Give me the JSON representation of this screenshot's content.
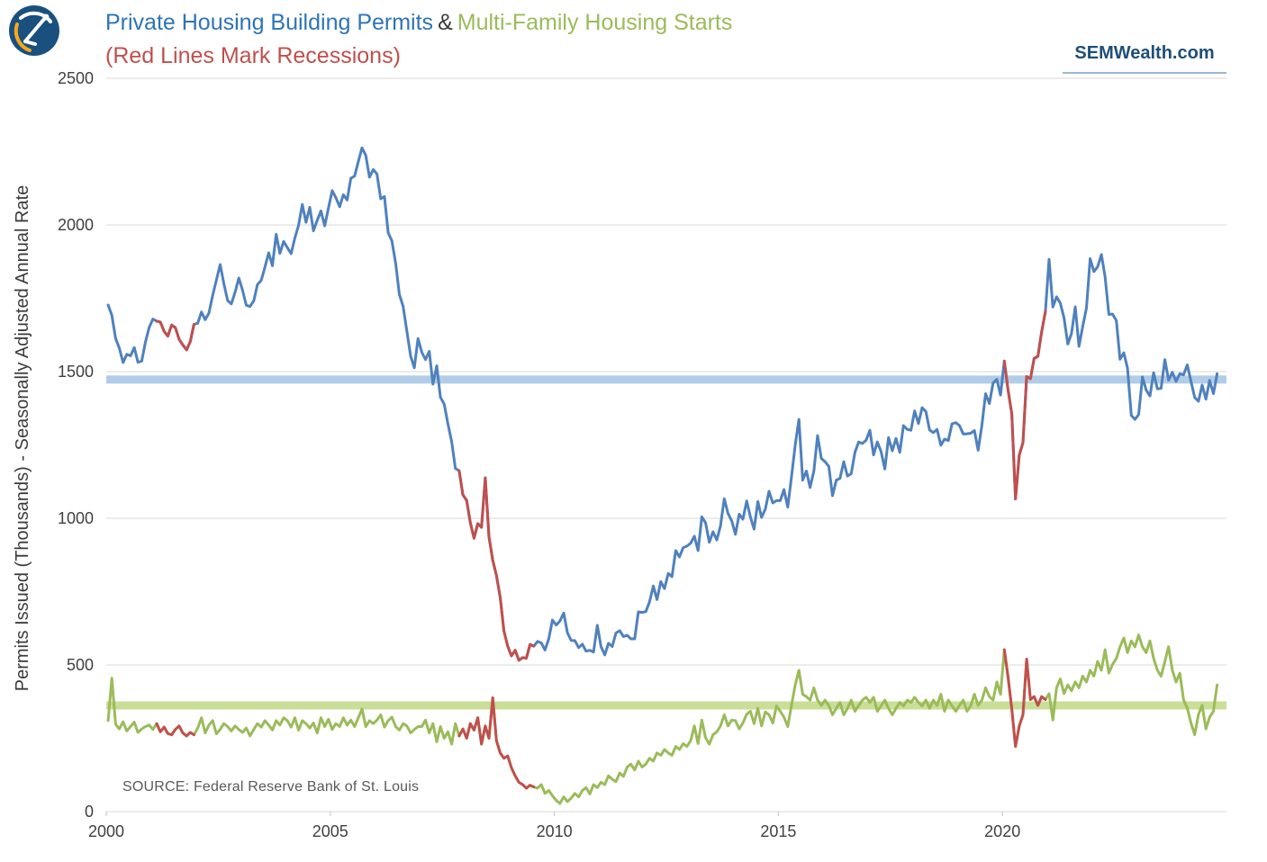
{
  "header": {
    "title_main": "Private Housing Building Permits",
    "title_amp": "&",
    "title_secondary": "Multi-Family Housing Starts",
    "subtitle": "(Red Lines Mark Recessions)",
    "brand": "SEMWealth.com"
  },
  "source": "SOURCE:  Federal Reserve Bank of St. Louis",
  "colors": {
    "permits_line": "#4F81BD",
    "starts_line": "#9BBB59",
    "recession": "#C0504D",
    "permits_band": "#A8C6E5",
    "starts_band": "#C3DA8B",
    "grid": "#D9D9D9",
    "axis_text": "#404040",
    "title_main": "#2E74B5",
    "subtitle": "#C0504D",
    "brand": "#1F4E79"
  },
  "chart_data": {
    "type": "line",
    "title": "Private Housing Building Permits & Multi-Family Housing Starts (Red Lines Mark Recessions)",
    "xlabel": "",
    "ylabel": "Permits Issued (Thousands) - Seasonally Adjusted Annual Rate",
    "xlim": [
      2000,
      2025
    ],
    "ylim": [
      0,
      2500
    ],
    "x_ticks": [
      2000,
      2005,
      2010,
      2015,
      2020
    ],
    "y_ticks": [
      0,
      500,
      1000,
      1500,
      2000,
      2500
    ],
    "grid": "horizontal",
    "legend_position": "none",
    "frequency": "monthly",
    "x_start": 2000.041667,
    "x_step": 0.083333,
    "recession_color": "#C0504D",
    "recession_intervals": [
      [
        2001.15,
        2001.93
      ],
      [
        2007.9,
        2009.5
      ],
      [
        2020.06,
        2020.88
      ]
    ],
    "series": [
      {
        "name": "Private Housing Building Permits",
        "color": "#4F81BD",
        "band_color": "#A8C6E5",
        "current_level_band": 1473,
        "values": [
          1727,
          1692,
          1613,
          1580,
          1531,
          1559,
          1554,
          1582,
          1532,
          1536,
          1601,
          1651,
          1679,
          1672,
          1669,
          1637,
          1621,
          1659,
          1650,
          1610,
          1591,
          1574,
          1602,
          1661,
          1665,
          1703,
          1677,
          1699,
          1760,
          1812,
          1865,
          1800,
          1742,
          1731,
          1771,
          1819,
          1777,
          1726,
          1722,
          1741,
          1797,
          1811,
          1856,
          1905,
          1861,
          1968,
          1903,
          1944,
          1923,
          1902,
          1955,
          1999,
          2070,
          2009,
          2060,
          1980,
          2016,
          2048,
          1997,
          2057,
          2117,
          2093,
          2062,
          2103,
          2085,
          2159,
          2167,
          2216,
          2263,
          2237,
          2163,
          2189,
          2174,
          2089,
          2097,
          1973,
          1946,
          1869,
          1763,
          1722,
          1638,
          1553,
          1513,
          1613,
          1566,
          1541,
          1569,
          1457,
          1520,
          1413,
          1389,
          1322,
          1261,
          1170,
          1162,
          1080,
          1061,
          985,
          932,
          982,
          969,
          1138,
          937,
          857,
          805,
          730,
          616,
          564,
          531,
          550,
          516,
          525,
          523,
          570,
          564,
          580,
          575,
          551,
          589,
          653,
          636,
          650,
          677,
          610,
          583,
          583,
          559,
          571,
          547,
          550,
          544,
          635,
          563,
          534,
          574,
          563,
          609,
          617,
          597,
          601,
          589,
          589,
          681,
          679,
          682,
          715,
          769,
          723,
          784,
          760,
          812,
          801,
          890,
          868,
          900,
          905,
          915,
          939,
          890,
          1005,
          985,
          918,
          954,
          926,
          974,
          1067,
          1017,
          991,
          945,
          1014,
          997,
          1059,
          1005,
          963,
          1057,
          1003,
          1031,
          1092,
          1052,
          1060,
          1060,
          1098,
          1038,
          1140,
          1250,
          1337,
          1130,
          1161,
          1105,
          1161,
          1282,
          1204,
          1193,
          1177,
          1077,
          1130,
          1136,
          1193,
          1144,
          1152,
          1225,
          1260,
          1255,
          1266,
          1300,
          1216,
          1260,
          1228,
          1168,
          1275,
          1230,
          1272,
          1225,
          1316,
          1303,
          1300,
          1366,
          1323,
          1377,
          1364,
          1301,
          1292,
          1303,
          1249,
          1270,
          1265,
          1322,
          1326,
          1316,
          1287,
          1288,
          1290,
          1299,
          1232,
          1317,
          1425,
          1391,
          1461,
          1474,
          1420,
          1536,
          1438,
          1356,
          1066,
          1216,
          1258,
          1483,
          1476,
          1545,
          1552,
          1635,
          1704,
          1883,
          1720,
          1755,
          1733,
          1683,
          1594,
          1630,
          1721,
          1586,
          1653,
          1717,
          1885,
          1841,
          1857,
          1899,
          1823,
          1695,
          1696,
          1674,
          1542,
          1564,
          1512,
          1351,
          1337,
          1354,
          1482,
          1437,
          1417,
          1496,
          1441,
          1443,
          1541,
          1471,
          1498,
          1467,
          1493,
          1489,
          1523,
          1467,
          1412,
          1399,
          1454,
          1406,
          1470,
          1425,
          1493
        ]
      },
      {
        "name": "Multi-Family Housing Starts",
        "color": "#9BBB59",
        "band_color": "#C3DA8B",
        "current_level_band": 362,
        "values": [
          310,
          455,
          298,
          282,
          306,
          275,
          290,
          305,
          270,
          282,
          290,
          295,
          280,
          300,
          272,
          288,
          266,
          262,
          280,
          292,
          268,
          258,
          270,
          262,
          285,
          320,
          268,
          295,
          310,
          265,
          280,
          300,
          290,
          275,
          292,
          280,
          270,
          285,
          258,
          280,
          300,
          288,
          310,
          295,
          278,
          310,
          295,
          320,
          310,
          288,
          320,
          278,
          310,
          300,
          285,
          302,
          268,
          320,
          290,
          315,
          280,
          300,
          290,
          320,
          295,
          312,
          290,
          320,
          350,
          290,
          310,
          300,
          312,
          330,
          288,
          310,
          322,
          290,
          278,
          300,
          292,
          268,
          280,
          290,
          290,
          312,
          268,
          300,
          238,
          290,
          250,
          272,
          230,
          300,
          258,
          282,
          250,
          300,
          278,
          320,
          230,
          292,
          250,
          388,
          242,
          200,
          182,
          190,
          150,
          122,
          100,
          92,
          80,
          90,
          84,
          80,
          92,
          62,
          72,
          54,
          38,
          28,
          50,
          34,
          46,
          62,
          50,
          72,
          82,
          60,
          92,
          82,
          100,
          92,
          122,
          110,
          102,
          132,
          120,
          152,
          162,
          142,
          172,
          152,
          162,
          182,
          172,
          200,
          192,
          212,
          200,
          192,
          222,
          212,
          232,
          222,
          242,
          292,
          232,
          312,
          252,
          230,
          262,
          272,
          292,
          330,
          292,
          312,
          310,
          282,
          302,
          332,
          342,
          300,
          352,
          292,
          340,
          330,
          302,
          360,
          342,
          322,
          290,
          362,
          432,
          482,
          400,
          392,
          380,
          422,
          380,
          362,
          380,
          362,
          330,
          352,
          372,
          330,
          352,
          380,
          342,
          362,
          380,
          390,
          372,
          390,
          342,
          360,
          380,
          352,
          330,
          352,
          372,
          360,
          380,
          372,
          390,
          372,
          360,
          380,
          352,
          380,
          362,
          400,
          342,
          380,
          360,
          342,
          362,
          380,
          342,
          360,
          400,
          362,
          380,
          422,
          392,
          380,
          442,
          400,
          552,
          460,
          350,
          222,
          292,
          330,
          520,
          382,
          392,
          362,
          392,
          382,
          402,
          312,
          422,
          452,
          402,
          432,
          412,
          442,
          422,
          462,
          442,
          482,
          462,
          512,
          482,
          552,
          472,
          502,
          522,
          562,
          592,
          542,
          582,
          562,
          602,
          562,
          542,
          582,
          522,
          482,
          462,
          512,
          562,
          482,
          442,
          472,
          382,
          352,
          302,
          262,
          332,
          362,
          282,
          322,
          342,
          432
        ]
      }
    ]
  }
}
